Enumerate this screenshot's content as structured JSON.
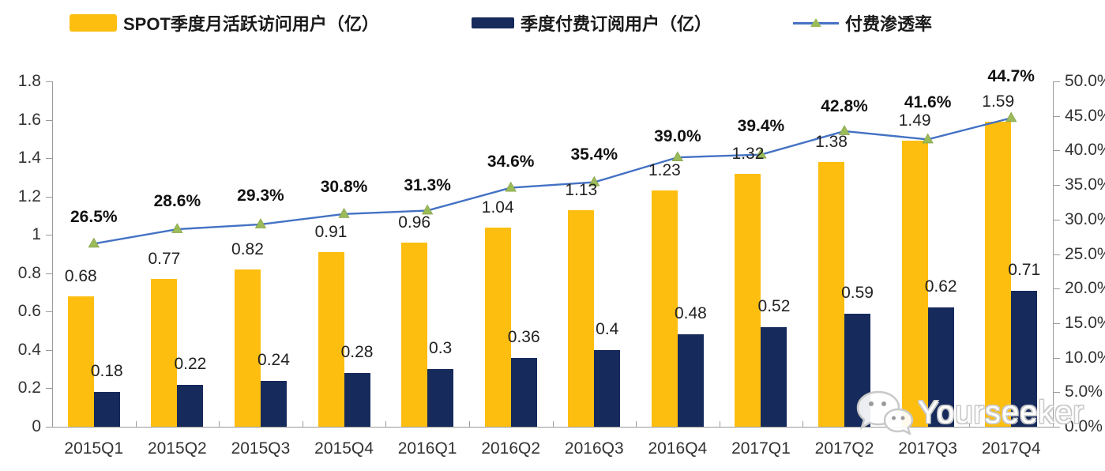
{
  "legend": {
    "mau_label": "SPOT季度月活跃访问用户（亿）",
    "subs_label": "季度付费订阅用户（亿）",
    "penetration_label": "付费渗透率"
  },
  "watermark": {
    "text": "Yourseeker",
    "icon": "wechat-icon"
  },
  "colors": {
    "mau_bar": "#FDBE10",
    "subs_bar": "#162A5C",
    "penetration_line": "#4472C4",
    "penetration_marker": "#9BBB59",
    "axis": "#9b9b9b"
  },
  "chart_data": {
    "type": "bar",
    "subtype": "grouped bars with overlaid line (dual axis)",
    "categories": [
      "2015Q1",
      "2015Q2",
      "2015Q3",
      "2015Q4",
      "2016Q1",
      "2016Q2",
      "2016Q3",
      "2016Q4",
      "2017Q1",
      "2017Q2",
      "2017Q3",
      "2017Q4"
    ],
    "series": [
      {
        "name": "SPOT季度月活跃访问用户（亿）",
        "type": "bar",
        "axis": "left",
        "color": "#FDBE10",
        "values": [
          0.68,
          0.77,
          0.82,
          0.91,
          0.96,
          1.04,
          1.13,
          1.23,
          1.32,
          1.38,
          1.49,
          1.59
        ],
        "labels": [
          "0.68",
          "0.77",
          "0.82",
          "0.91",
          "0.96",
          "1.04",
          "1.13",
          "1.23",
          "1.32",
          "1.38",
          "1.49",
          "1.59"
        ]
      },
      {
        "name": "季度付费订阅用户（亿）",
        "type": "bar",
        "axis": "left",
        "color": "#162A5C",
        "values": [
          0.18,
          0.22,
          0.24,
          0.28,
          0.3,
          0.36,
          0.4,
          0.48,
          0.52,
          0.59,
          0.62,
          0.71
        ],
        "labels": [
          "0.18",
          "0.22",
          "0.24",
          "0.28",
          "0.3",
          "0.36",
          "0.4",
          "0.48",
          "0.52",
          "0.59",
          "0.62",
          "0.71"
        ]
      },
      {
        "name": "付费渗透率",
        "type": "line",
        "axis": "right",
        "color": "#4472C4",
        "marker": "triangle",
        "marker_color": "#9BBB59",
        "values": [
          26.5,
          28.6,
          29.3,
          30.8,
          31.3,
          34.6,
          35.4,
          39.0,
          39.4,
          42.8,
          41.6,
          44.7
        ],
        "labels": [
          "26.5%",
          "28.6%",
          "29.3%",
          "30.8%",
          "31.3%",
          "34.6%",
          "35.4%",
          "39.0%",
          "39.4%",
          "42.8%",
          "41.6%",
          "44.7%"
        ]
      }
    ],
    "left_axis": {
      "min": 0,
      "max": 1.8,
      "step": 0.2,
      "tick_labels": [
        "0",
        "0.2",
        "0.4",
        "0.6",
        "0.8",
        "1",
        "1.2",
        "1.4",
        "1.6",
        "1.8"
      ]
    },
    "right_axis": {
      "min": 0,
      "max": 50,
      "step": 5,
      "unit": "%",
      "tick_labels": [
        "0.0%",
        "5.0%",
        "10.0%",
        "15.0%",
        "20.0%",
        "25.0%",
        "30.0%",
        "35.0%",
        "40.0%",
        "45.0%",
        "50.0%"
      ]
    },
    "grid": false,
    "legend_position": "top",
    "title": ""
  }
}
